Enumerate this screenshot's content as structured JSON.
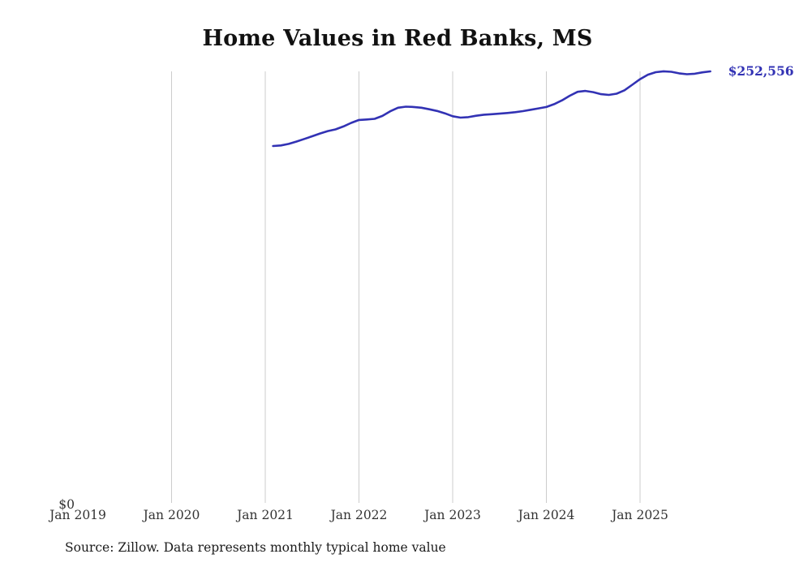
{
  "page": {
    "background": "#ffffff"
  },
  "title": "Home Values in Red Banks, MS",
  "source_note": "Source: Zillow. Data represents monthly typical home value",
  "chart_data": {
    "type": "line",
    "title": "Home Values in Red Banks, MS",
    "xlabel": "",
    "ylabel": "",
    "grid": "vertical-only",
    "legend": "none",
    "line_color": "#3232b4",
    "grid_color": "#cccccc",
    "tick_label_color": "#333333",
    "ylim": [
      0,
      260000
    ],
    "y_zero_label": "$0",
    "end_value_label": "$252,556",
    "end_value": 252556,
    "x_tick_labels": [
      "Jan 2019",
      "Jan 2020",
      "Jan 2021",
      "Jan 2022",
      "Jan 2023",
      "Jan 2024",
      "Jan 2025"
    ],
    "gridline_years": [
      2020,
      2021,
      2022,
      2023,
      2024,
      2025
    ],
    "x": [
      "2021-02",
      "2021-03",
      "2021-04",
      "2021-05",
      "2021-06",
      "2021-07",
      "2021-08",
      "2021-09",
      "2021-10",
      "2021-11",
      "2021-12",
      "2022-01",
      "2022-02",
      "2022-03",
      "2022-04",
      "2022-05",
      "2022-06",
      "2022-07",
      "2022-08",
      "2022-09",
      "2022-10",
      "2022-11",
      "2022-12",
      "2023-01",
      "2023-02",
      "2023-03",
      "2023-04",
      "2023-05",
      "2023-06",
      "2023-07",
      "2023-08",
      "2023-09",
      "2023-10",
      "2023-11",
      "2023-12",
      "2024-01",
      "2024-02",
      "2024-03",
      "2024-04",
      "2024-05",
      "2024-06",
      "2024-07",
      "2024-08",
      "2024-09",
      "2024-10",
      "2024-11",
      "2024-12",
      "2025-01",
      "2025-02",
      "2025-03",
      "2025-04",
      "2025-05",
      "2025-06",
      "2025-07",
      "2025-08",
      "2025-09",
      "2025-10"
    ],
    "values": [
      208900,
      209200,
      210100,
      211500,
      213000,
      214600,
      216200,
      217600,
      218600,
      220300,
      222400,
      224100,
      224400,
      224800,
      226500,
      229200,
      231300,
      231900,
      231700,
      231300,
      230400,
      229400,
      228000,
      226300,
      225500,
      225800,
      226600,
      227200,
      227500,
      227800,
      228200,
      228700,
      229300,
      230100,
      230900,
      231700,
      233400,
      235600,
      238300,
      240600,
      241100,
      240400,
      239200,
      238800,
      239500,
      241500,
      244700,
      248000,
      250600,
      252100,
      252600,
      252300,
      251400,
      250900,
      251200,
      252000,
      252556
    ]
  }
}
